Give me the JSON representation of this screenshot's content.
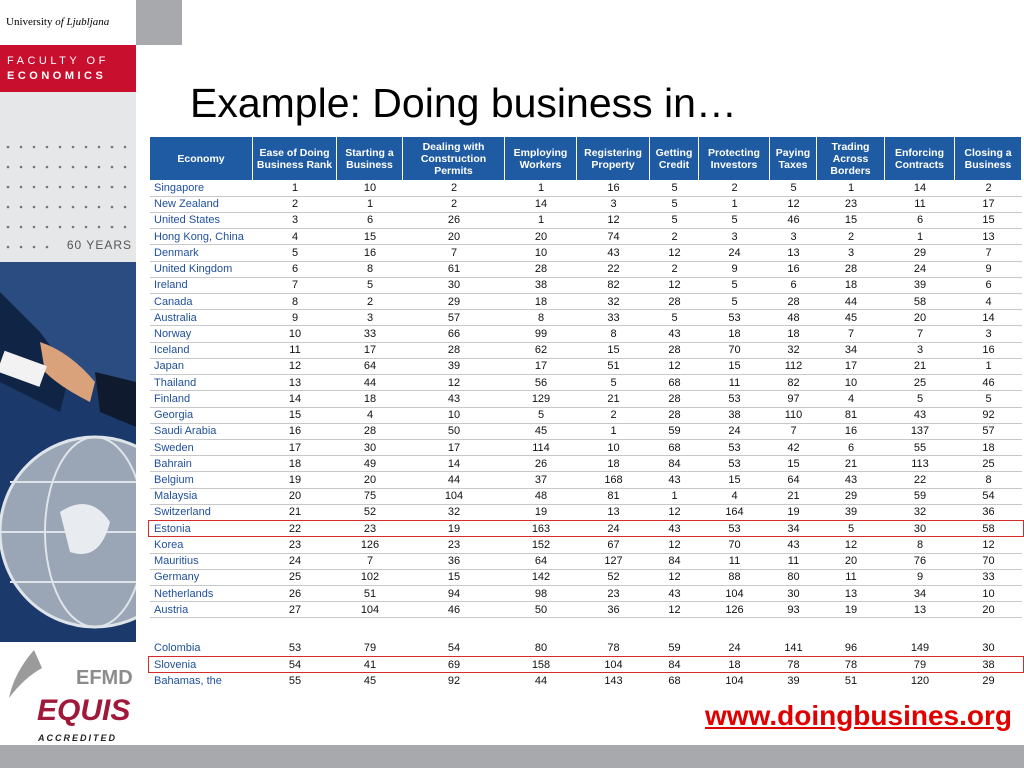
{
  "branding": {
    "university": "University",
    "university_city": "of Ljubljana",
    "faculty_line1": "FACULTY OF",
    "faculty_line2": "ECONOMICS",
    "years": "60 YEARS",
    "efmd": "EFMD",
    "equis": "EQUIS",
    "accredited": "ACCREDITED"
  },
  "title": "Example: Doing business in…",
  "table": {
    "columns": [
      "Economy",
      "Ease of Doing\nBusiness Rank",
      "Starting a\nBusiness",
      "Dealing with\nConstruction\nPermits",
      "Employing\nWorkers",
      "Registering\nProperty",
      "Getting\nCredit",
      "Protecting\nInvestors",
      "Paying\nTaxes",
      "Trading\nAcross\nBorders",
      "Enforcing\nContracts",
      "Closing a\nBusiness"
    ],
    "rows": [
      [
        "Singapore",
        1,
        10,
        2,
        1,
        16,
        5,
        2,
        5,
        1,
        14,
        2
      ],
      [
        "New Zealand",
        2,
        1,
        2,
        14,
        3,
        5,
        1,
        12,
        23,
        11,
        17
      ],
      [
        "United States",
        3,
        6,
        26,
        1,
        12,
        5,
        5,
        46,
        15,
        6,
        15
      ],
      [
        "Hong Kong, China",
        4,
        15,
        20,
        20,
        74,
        2,
        3,
        3,
        2,
        1,
        13
      ],
      [
        "Denmark",
        5,
        16,
        7,
        10,
        43,
        12,
        24,
        13,
        3,
        29,
        7
      ],
      [
        "United Kingdom",
        6,
        8,
        61,
        28,
        22,
        2,
        9,
        16,
        28,
        24,
        9
      ],
      [
        "Ireland",
        7,
        5,
        30,
        38,
        82,
        12,
        5,
        6,
        18,
        39,
        6
      ],
      [
        "Canada",
        8,
        2,
        29,
        18,
        32,
        28,
        5,
        28,
        44,
        58,
        4
      ],
      [
        "Australia",
        9,
        3,
        57,
        8,
        33,
        5,
        53,
        48,
        45,
        20,
        14
      ],
      [
        "Norway",
        10,
        33,
        66,
        99,
        8,
        43,
        18,
        18,
        7,
        7,
        3
      ],
      [
        "Iceland",
        11,
        17,
        28,
        62,
        15,
        28,
        70,
        32,
        34,
        3,
        16
      ],
      [
        "Japan",
        12,
        64,
        39,
        17,
        51,
        12,
        15,
        112,
        17,
        21,
        1
      ],
      [
        "Thailand",
        13,
        44,
        12,
        56,
        5,
        68,
        11,
        82,
        10,
        25,
        46
      ],
      [
        "Finland",
        14,
        18,
        43,
        129,
        21,
        28,
        53,
        97,
        4,
        5,
        5
      ],
      [
        "Georgia",
        15,
        4,
        10,
        5,
        2,
        28,
        38,
        110,
        81,
        43,
        92
      ],
      [
        "Saudi Arabia",
        16,
        28,
        50,
        45,
        1,
        59,
        24,
        7,
        16,
        137,
        57
      ],
      [
        "Sweden",
        17,
        30,
        17,
        114,
        10,
        68,
        53,
        42,
        6,
        55,
        18
      ],
      [
        "Bahrain",
        18,
        49,
        14,
        26,
        18,
        84,
        53,
        15,
        21,
        113,
        25
      ],
      [
        "Belgium",
        19,
        20,
        44,
        37,
        168,
        43,
        15,
        64,
        43,
        22,
        8
      ],
      [
        "Malaysia",
        20,
        75,
        104,
        48,
        81,
        1,
        4,
        21,
        29,
        59,
        54
      ],
      [
        "Switzerland",
        21,
        52,
        32,
        19,
        13,
        12,
        164,
        19,
        39,
        32,
        36
      ],
      [
        "Estonia",
        22,
        23,
        19,
        163,
        24,
        43,
        53,
        34,
        5,
        30,
        58
      ],
      [
        "Korea",
        23,
        126,
        23,
        152,
        67,
        12,
        70,
        43,
        12,
        8,
        12
      ],
      [
        "Mauritius",
        24,
        7,
        36,
        64,
        127,
        84,
        11,
        11,
        20,
        76,
        70
      ],
      [
        "Germany",
        25,
        102,
        15,
        142,
        52,
        12,
        88,
        80,
        11,
        9,
        33
      ],
      [
        "Netherlands",
        26,
        51,
        94,
        98,
        23,
        43,
        104,
        30,
        13,
        34,
        10
      ],
      [
        "Austria",
        27,
        104,
        46,
        50,
        36,
        12,
        126,
        93,
        19,
        13,
        20
      ]
    ],
    "highlight": [
      21
    ]
  },
  "extra": {
    "rows": [
      [
        "Colombia",
        53,
        79,
        54,
        80,
        78,
        59,
        24,
        141,
        96,
        149,
        30
      ],
      [
        "Slovenia",
        54,
        41,
        69,
        158,
        104,
        84,
        18,
        78,
        78,
        79,
        38
      ],
      [
        "Bahamas, the",
        55,
        45,
        92,
        44,
        143,
        68,
        104,
        39,
        51,
        120,
        29
      ]
    ],
    "highlight": [
      1
    ]
  },
  "link": "www.doingbusines.org"
}
